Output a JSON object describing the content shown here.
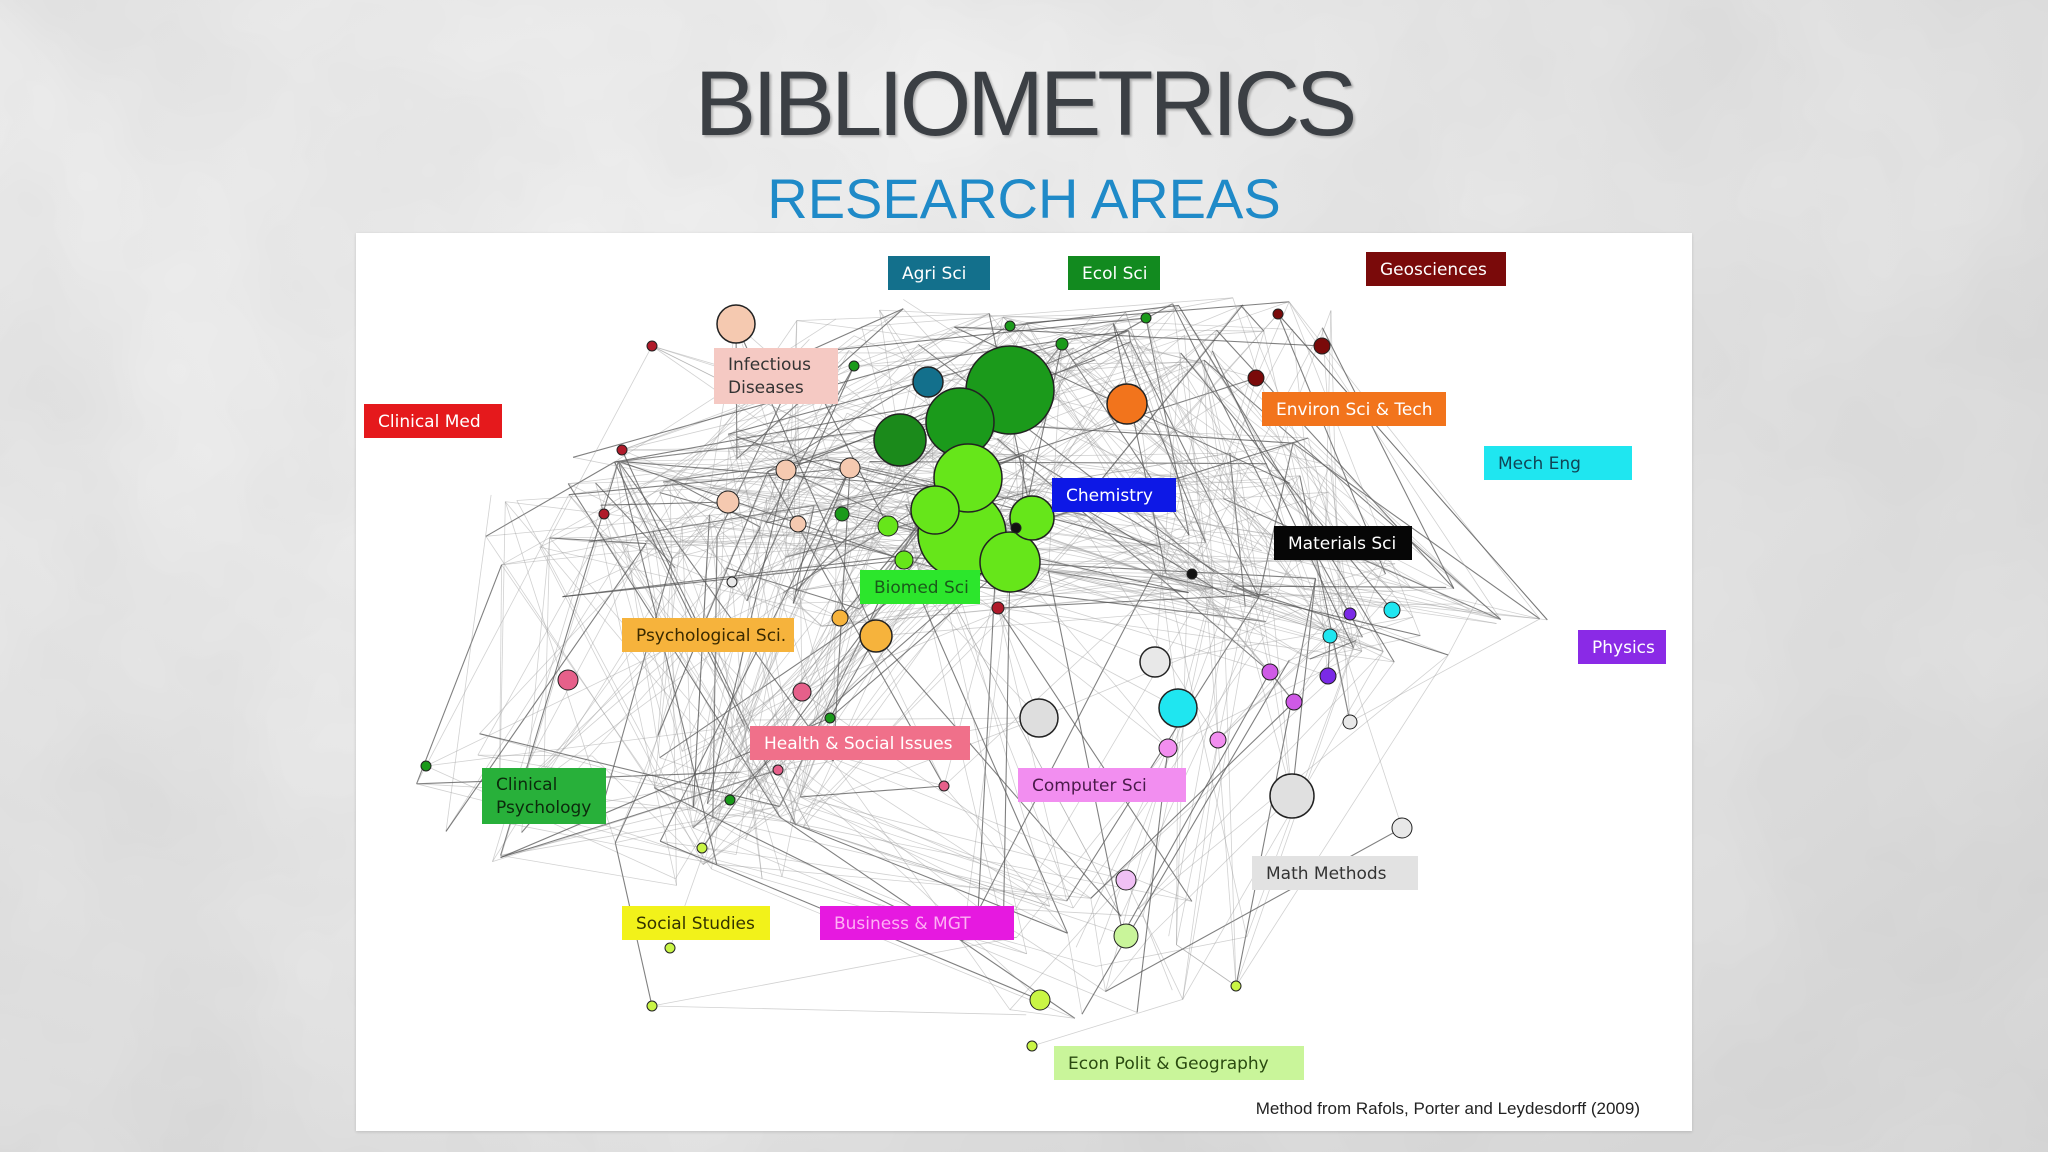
{
  "slide": {
    "title": "BIBLIOMETRICS",
    "subtitle": "RESEARCH AREAS"
  },
  "figure": {
    "caption": "Method from Rafols, Porter and Leydesdorff (2009)",
    "labels": [
      {
        "text": "Agri Sci",
        "bg": "#13708c",
        "fg": "#ffffff"
      },
      {
        "text": "Ecol Sci",
        "bg": "#128a1f",
        "fg": "#ffffff"
      },
      {
        "text": "Geosciences",
        "bg": "#7a0a0a",
        "fg": "#ffffff"
      },
      {
        "text": "Infectious\nDiseases",
        "bg": "#f5c9c3",
        "fg": "#333333"
      },
      {
        "text": "Clinical Med",
        "bg": "#e5191c",
        "fg": "#ffffff"
      },
      {
        "text": "Environ Sci & Tech",
        "bg": "#f2741c",
        "fg": "#ffffff"
      },
      {
        "text": "Mech Eng",
        "bg": "#1fe6f0",
        "fg": "#114455"
      },
      {
        "text": "Chemistry",
        "bg": "#0d18e6",
        "fg": "#ffffff"
      },
      {
        "text": "Materials Sci",
        "bg": "#060606",
        "fg": "#ffffff"
      },
      {
        "text": "Biomed Sci",
        "bg": "#2ce62c",
        "fg": "#1a5a1a"
      },
      {
        "text": "Psychological Sci.",
        "bg": "#f6b33c",
        "fg": "#3a2a00"
      },
      {
        "text": "Physics",
        "bg": "#8a2ae6",
        "fg": "#ffffff"
      },
      {
        "text": "Health & Social Issues",
        "bg": "#f0708a",
        "fg": "#ffffff"
      },
      {
        "text": "Computer Sci",
        "bg": "#f28ef0",
        "fg": "#4a1a4a"
      },
      {
        "text": "Clinical\nPsychology",
        "bg": "#28b03a",
        "fg": "#0c2a0c"
      },
      {
        "text": "Math Methods",
        "bg": "#e2e2e2",
        "fg": "#333333"
      },
      {
        "text": "Social Studies",
        "bg": "#f2f21a",
        "fg": "#333300"
      },
      {
        "text": "Business & MGT",
        "bg": "#e619e0",
        "fg": "#ffb0f5"
      },
      {
        "text": "Econ Polit & Geography",
        "bg": "#c9f59a",
        "fg": "#2a4a10"
      }
    ]
  }
}
